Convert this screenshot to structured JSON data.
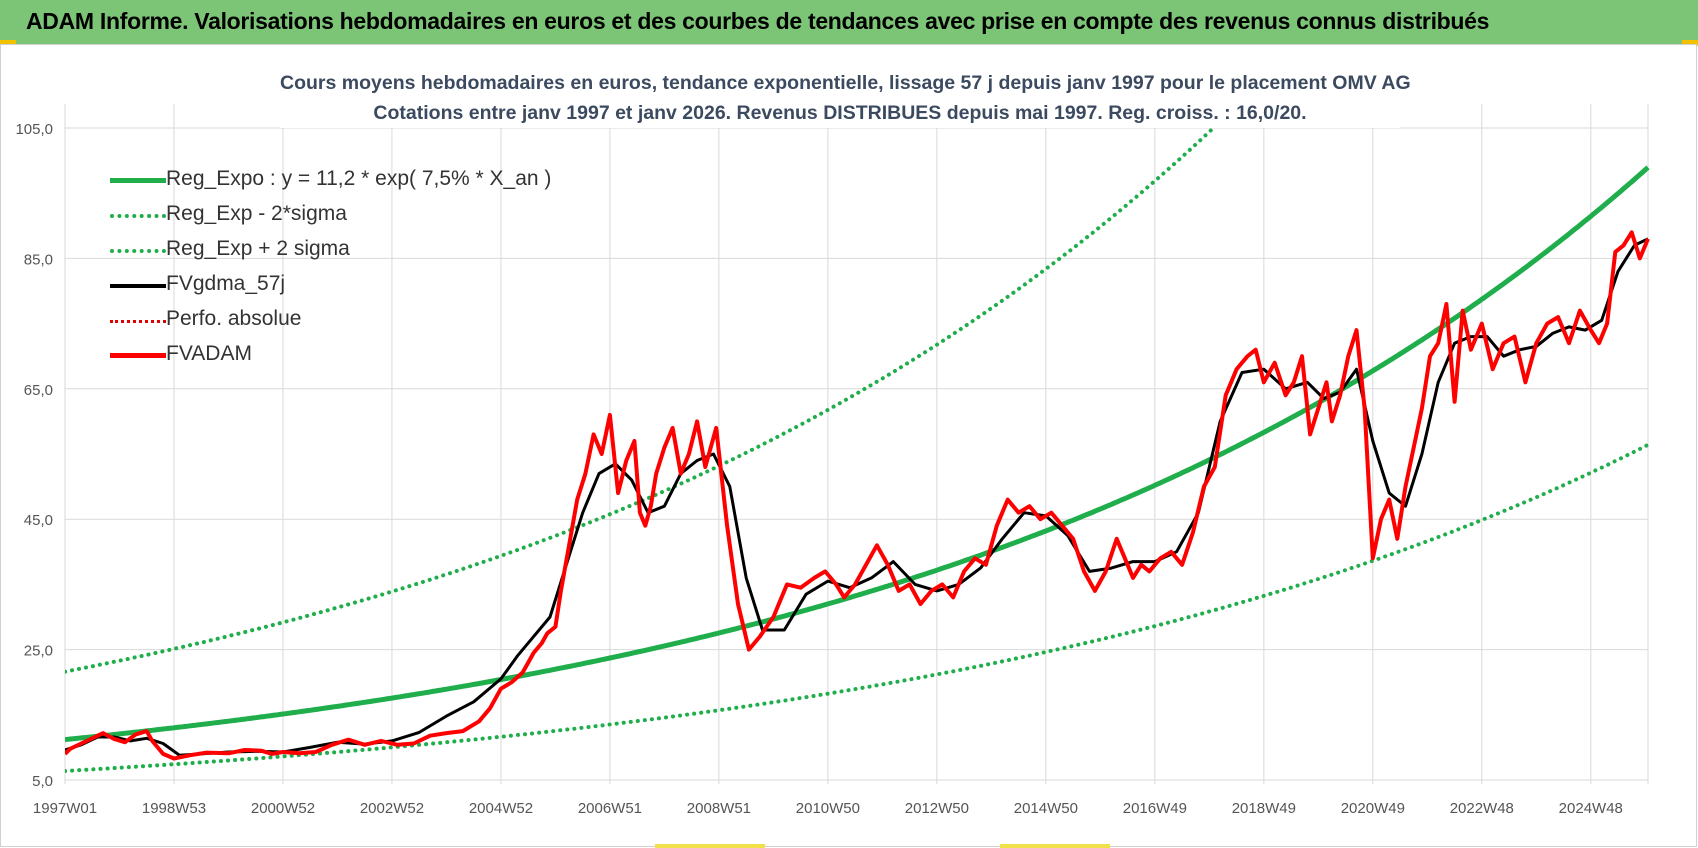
{
  "banner": {
    "title": "ADAM Informe. Valorisations hebdomadaires en euros et des courbes de tendances avec prise en compte des revenus connus distribués"
  },
  "colors": {
    "banner_bg": "#7cc576",
    "reg_expo": "#1fae4b",
    "fvgdma": "#000000",
    "fvadam": "#ff0000",
    "grid": "#d9d9d9",
    "title_text": "#3c4a60"
  },
  "chart_data": {
    "type": "line",
    "title_line1": "Cours moyens hebdomadaires en euros, tendance exponentielle, lissage 57 j depuis janv 1997 pour le placement OMV AG",
    "title_line2": "Cotations entre janv 1997 et janv 2026. Revenus DISTRIBUES depuis mai 1997. Reg. croiss. : 16,0/20.",
    "xlabel": "",
    "ylabel": "",
    "xlim": [
      1997.0,
      2026.05
    ],
    "ylim": [
      5,
      110
    ],
    "y_ticks": [
      5,
      25,
      45,
      65,
      85,
      105
    ],
    "y_tick_labels": [
      "5,0",
      "25,0",
      "45,0",
      "65,0",
      "85,0",
      "105,0"
    ],
    "x_ticks": [
      1997.0,
      1999.0,
      2001.0,
      2003.0,
      2005.0,
      2007.0,
      2009.0,
      2011.0,
      2013.0,
      2015.0,
      2017.0,
      2019.0,
      2021.0,
      2023.0,
      2025.0
    ],
    "x_tick_labels": [
      "1997W01",
      "1998W53",
      "2000W52",
      "2002W52",
      "2004W52",
      "2006W51",
      "2008W51",
      "2010W50",
      "2012W50",
      "2014W50",
      "2016W49",
      "2018W49",
      "2020W49",
      "2022W48",
      "2024W48"
    ],
    "grid": true,
    "legend_position": "top-left",
    "legend": [
      "Reg_Expo : y = 11,2 * exp( 7,5% *  X_an )",
      "Reg_Exp - 2*sigma",
      "Reg_Exp + 2 sigma",
      "FVgdma_57j",
      "Perfo. absolue",
      "FVADAM"
    ],
    "regression": {
      "name": "Reg_Expo",
      "formula": "y = 11,2 * exp( 7,5% *  X_an )",
      "a": 11.2,
      "rate": 0.075,
      "x0": 1997.0,
      "lower_factor": 0.57,
      "upper_factor": 1.93
    },
    "series": [
      {
        "name": "FVADAM",
        "x": [
          1997.0,
          1997.1,
          1997.3,
          1997.5,
          1997.7,
          1997.9,
          1998.1,
          1998.3,
          1998.5,
          1998.6,
          1998.8,
          1999.0,
          1999.3,
          1999.6,
          2000.0,
          2000.3,
          2000.6,
          2000.8,
          2001.0,
          2001.3,
          2001.6,
          2001.9,
          2002.2,
          2002.5,
          2002.8,
          2003.1,
          2003.4,
          2003.7,
          2004.0,
          2004.3,
          2004.6,
          2004.8,
          2005.0,
          2005.2,
          2005.4,
          2005.5,
          2005.6,
          2005.75,
          2005.85,
          2006.0,
          2006.1,
          2006.25,
          2006.4,
          2006.55,
          2006.7,
          2006.85,
          2007.0,
          2007.15,
          2007.3,
          2007.45,
          2007.55,
          2007.65,
          2007.75,
          2007.85,
          2008.0,
          2008.15,
          2008.3,
          2008.45,
          2008.6,
          2008.75,
          2008.95,
          2009.15,
          2009.35,
          2009.55,
          2009.75,
          2010.0,
          2010.25,
          2010.5,
          2010.75,
          2010.95,
          2011.15,
          2011.3,
          2011.5,
          2011.7,
          2011.9,
          2012.1,
          2012.3,
          2012.5,
          2012.7,
          2012.9,
          2013.1,
          2013.3,
          2013.5,
          2013.7,
          2013.9,
          2014.1,
          2014.3,
          2014.5,
          2014.7,
          2014.9,
          2015.1,
          2015.3,
          2015.5,
          2015.7,
          2015.9,
          2016.1,
          2016.3,
          2016.5,
          2016.6,
          2016.75,
          2016.9,
          2017.1,
          2017.3,
          2017.5,
          2017.7,
          2017.9,
          2018.1,
          2018.3,
          2018.5,
          2018.7,
          2018.85,
          2019.0,
          2019.2,
          2019.4,
          2019.55,
          2019.7,
          2019.85,
          2020.0,
          2020.15,
          2020.25,
          2020.4,
          2020.55,
          2020.7,
          2020.85,
          2021.0,
          2021.15,
          2021.3,
          2021.45,
          2021.6,
          2021.75,
          2021.9,
          2022.05,
          2022.2,
          2022.35,
          2022.5,
          2022.65,
          2022.8,
          2023.0,
          2023.2,
          2023.4,
          2023.6,
          2023.8,
          2024.0,
          2024.2,
          2024.4,
          2024.6,
          2024.8,
          2025.0,
          2025.15,
          2025.3,
          2025.45,
          2025.6,
          2025.75,
          2025.9,
          2026.05
        ],
        "values": [
          9.0,
          9.8,
          10.6,
          11.4,
          12.2,
          11.3,
          10.8,
          12.0,
          12.5,
          11.0,
          9.0,
          8.3,
          8.8,
          9.2,
          9.1,
          9.6,
          9.5,
          9.0,
          9.3,
          9.1,
          9.3,
          10.4,
          11.2,
          10.4,
          11.0,
          10.4,
          10.6,
          11.8,
          12.2,
          12.5,
          14.0,
          16.0,
          19.0,
          20.0,
          21.5,
          23.0,
          24.5,
          26.0,
          27.5,
          28.5,
          34.0,
          41.0,
          48.0,
          52.0,
          58.0,
          55.0,
          61.0,
          49.0,
          54.0,
          57.0,
          46.0,
          44.0,
          47.0,
          52.0,
          56.0,
          59.0,
          52.0,
          55.0,
          60.0,
          53.0,
          59.0,
          44.0,
          32.0,
          25.0,
          27.0,
          30.0,
          35.0,
          34.5,
          36.0,
          37.0,
          35.0,
          33.0,
          35.0,
          38.0,
          41.0,
          38.0,
          34.0,
          35.0,
          32.0,
          34.0,
          35.0,
          33.0,
          37.0,
          39.0,
          38.0,
          44.0,
          48.0,
          46.0,
          47.0,
          45.0,
          46.0,
          44.0,
          42.0,
          37.0,
          34.0,
          37.0,
          42.0,
          38.0,
          36.0,
          38.0,
          37.0,
          39.0,
          40.0,
          38.0,
          43.0,
          50.0,
          53.0,
          64.0,
          68.0,
          70.0,
          71.0,
          66.0,
          69.0,
          64.0,
          66.0,
          70.0,
          58.0,
          62.0,
          66.0,
          60.0,
          64.0,
          70.0,
          74.0,
          62.0,
          39.0,
          45.0,
          48.0,
          42.0,
          50.0,
          56.0,
          62.0,
          70.0,
          72.0,
          78.0,
          63.0,
          77.0,
          71.0,
          75.0,
          68.0,
          72.0,
          73.0,
          66.0,
          72.0,
          75.0,
          76.0,
          72.0,
          77.0,
          74.0,
          72.0,
          75.0,
          86.0,
          87.0,
          89.0,
          85.0,
          88.0
        ],
        "color": "#ff0000"
      },
      {
        "name": "FVgdma_57j",
        "x": [
          1997.0,
          1997.3,
          1997.6,
          1997.9,
          1998.2,
          1998.5,
          1998.8,
          1999.1,
          1999.5,
          2000.0,
          2000.5,
          2001.0,
          2001.5,
          2002.0,
          2002.5,
          2003.0,
          2003.5,
          2004.0,
          2004.5,
          2005.0,
          2005.3,
          2005.6,
          2005.9,
          2006.2,
          2006.5,
          2006.8,
          2007.1,
          2007.4,
          2007.7,
          2008.0,
          2008.3,
          2008.6,
          2008.9,
          2009.2,
          2009.5,
          2009.8,
          2010.2,
          2010.6,
          2011.0,
          2011.4,
          2011.8,
          2012.2,
          2012.6,
          2013.0,
          2013.4,
          2013.8,
          2014.2,
          2014.6,
          2015.0,
          2015.4,
          2015.8,
          2016.2,
          2016.6,
          2017.0,
          2017.4,
          2017.8,
          2018.2,
          2018.6,
          2019.0,
          2019.4,
          2019.8,
          2020.1,
          2020.4,
          2020.7,
          2021.0,
          2021.3,
          2021.6,
          2021.9,
          2022.2,
          2022.5,
          2022.8,
          2023.1,
          2023.4,
          2023.7,
          2024.0,
          2024.3,
          2024.6,
          2024.9,
          2025.2,
          2025.5,
          2025.8,
          2026.05
        ],
        "values": [
          9.6,
          10.4,
          11.6,
          11.6,
          11.0,
          11.4,
          10.6,
          8.8,
          9.0,
          9.3,
          9.4,
          9.3,
          10.0,
          10.8,
          10.5,
          11.0,
          12.3,
          14.8,
          17.0,
          20.5,
          24.0,
          27.0,
          30.0,
          38.0,
          46.0,
          52.0,
          53.5,
          51.0,
          46.0,
          47.0,
          52.0,
          54.0,
          55.0,
          50.0,
          36.0,
          28.0,
          28.0,
          33.5,
          35.5,
          34.5,
          36.0,
          38.5,
          35.0,
          34.0,
          35.0,
          37.5,
          42.0,
          46.0,
          45.5,
          42.5,
          37.0,
          37.5,
          38.5,
          38.5,
          40.0,
          46.0,
          60.0,
          67.5,
          68.0,
          65.0,
          66.0,
          63.5,
          64.5,
          68.0,
          57.0,
          49.0,
          47.0,
          55.0,
          66.0,
          72.0,
          73.0,
          73.0,
          70.0,
          71.0,
          71.5,
          73.5,
          74.5,
          74.0,
          75.5,
          83.0,
          87.0,
          88.0
        ],
        "color": "#000000"
      }
    ]
  }
}
